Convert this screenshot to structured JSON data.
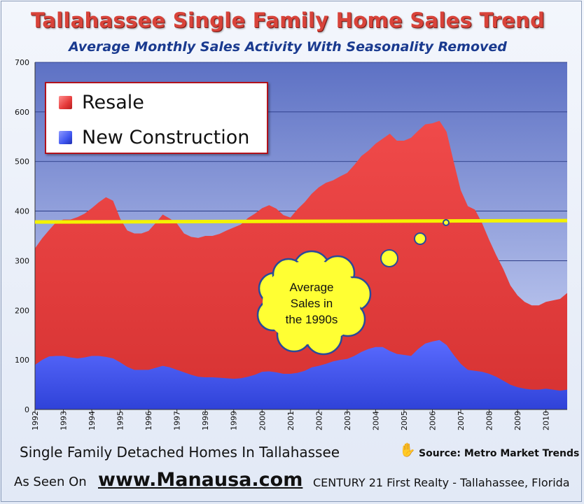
{
  "title": "Tallahassee Single Family Home Sales Trend",
  "subtitle": "Average Monthly Sales Activity With Seasonality Removed",
  "legend": {
    "resale": "Resale",
    "new_construction": "New Construction"
  },
  "annotation": {
    "line1": "Average",
    "line2": "Sales in",
    "line3": "the 1990s"
  },
  "footer": {
    "caption": "Single Family Detached Homes In Tallahassee",
    "source": "Source:  Metro Market Trends",
    "as_seen_on": "As Seen On",
    "website": "www.Manausa.com",
    "agent": "CENTURY 21 First Realty - Tallahassee, Florida"
  },
  "colors": {
    "resale": "#e23b3b",
    "new_construction": "#3f51ee",
    "average_line": "#f4f200",
    "title": "#d8433a",
    "subtitle": "#1a3a8f",
    "legend_border": "#b1121c",
    "cloud_fill": "#ffff33"
  },
  "icons": {
    "source": "hand-pointer-icon"
  },
  "chart_data": {
    "type": "area",
    "stacked": true,
    "x_ticks": [
      "1992",
      "1993",
      "1994",
      "1995",
      "1996",
      "1997",
      "1998",
      "1999",
      "2000",
      "2001",
      "2002",
      "2003",
      "2004",
      "2005",
      "2006",
      "2007",
      "2008",
      "2009",
      "2010"
    ],
    "y_ticks": [
      0,
      100,
      200,
      300,
      400,
      500,
      600,
      700
    ],
    "ylim": [
      0,
      700
    ],
    "xlim": [
      1992.0,
      2010.75
    ],
    "grid": true,
    "legend_position": "top-left",
    "x": [
      1992.0,
      1992.25,
      1992.5,
      1992.75,
      1993.0,
      1993.25,
      1993.5,
      1993.75,
      1994.0,
      1994.25,
      1994.5,
      1994.75,
      1995.0,
      1995.25,
      1995.5,
      1995.75,
      1996.0,
      1996.25,
      1996.5,
      1996.75,
      1997.0,
      1997.25,
      1997.5,
      1997.75,
      1998.0,
      1998.25,
      1998.5,
      1998.75,
      1999.0,
      1999.25,
      1999.5,
      1999.75,
      2000.0,
      2000.25,
      2000.5,
      2000.75,
      2001.0,
      2001.25,
      2001.5,
      2001.75,
      2002.0,
      2002.25,
      2002.5,
      2002.75,
      2003.0,
      2003.25,
      2003.5,
      2003.75,
      2004.0,
      2004.25,
      2004.5,
      2004.75,
      2005.0,
      2005.25,
      2005.5,
      2005.75,
      2006.0,
      2006.25,
      2006.5,
      2006.75,
      2007.0,
      2007.25,
      2007.5,
      2007.75,
      2008.0,
      2008.25,
      2008.5,
      2008.75,
      2009.0,
      2009.25,
      2009.5,
      2009.75,
      2010.0,
      2010.25,
      2010.5,
      2010.75
    ],
    "series": [
      {
        "name": "Resale",
        "values": [
          235,
          245,
          255,
          270,
          275,
          278,
          285,
          290,
          298,
          310,
          322,
          318,
          290,
          275,
          275,
          275,
          280,
          292,
          305,
          300,
          295,
          280,
          278,
          280,
          285,
          285,
          290,
          298,
          305,
          310,
          320,
          325,
          330,
          335,
          330,
          320,
          315,
          330,
          340,
          350,
          360,
          365,
          365,
          370,
          375,
          385,
          395,
          400,
          410,
          420,
          438,
          430,
          432,
          440,
          440,
          442,
          440,
          442,
          430,
          390,
          350,
          330,
          325,
          300,
          270,
          245,
          225,
          200,
          185,
          175,
          170,
          170,
          175,
          180,
          185,
          195
        ]
      },
      {
        "name": "New Construction",
        "values": [
          90,
          100,
          107,
          108,
          108,
          105,
          103,
          105,
          108,
          108,
          106,
          103,
          95,
          86,
          80,
          80,
          80,
          84,
          88,
          85,
          80,
          75,
          70,
          66,
          65,
          65,
          64,
          63,
          62,
          63,
          66,
          70,
          76,
          77,
          75,
          72,
          72,
          74,
          78,
          85,
          88,
          92,
          97,
          100,
          102,
          108,
          116,
          122,
          126,
          126,
          118,
          112,
          110,
          108,
          122,
          133,
          137,
          140,
          130,
          110,
          92,
          80,
          78,
          76,
          72,
          66,
          58,
          50,
          45,
          42,
          40,
          40,
          42,
          40,
          38,
          40
        ]
      }
    ],
    "reference_line": {
      "value": 378,
      "label": "Average Sales in the 1990s"
    }
  }
}
